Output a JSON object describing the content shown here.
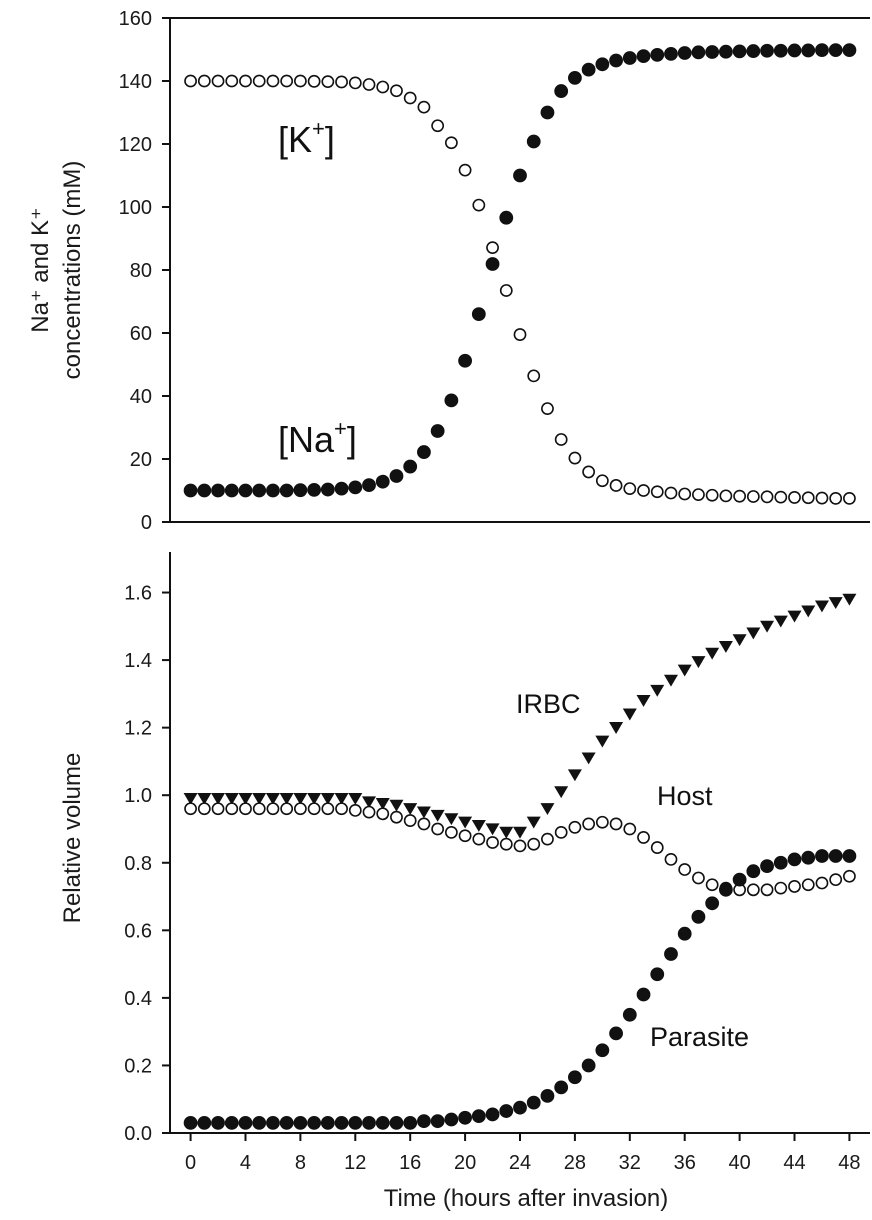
{
  "chart_data": [
    {
      "type": "scatter",
      "panel": "top",
      "ylabel_line1": "Na⁺ and K⁺",
      "ylabel_line2": "concentrations (mM)",
      "ylim": [
        0,
        160
      ],
      "yticks": [
        "0",
        "20",
        "40",
        "60",
        "80",
        "100",
        "120",
        "140",
        "160"
      ],
      "xlim": [
        -1.5,
        49.5
      ],
      "x": [
        0,
        1,
        2,
        3,
        4,
        5,
        6,
        7,
        8,
        9,
        10,
        11,
        12,
        13,
        14,
        15,
        16,
        17,
        18,
        19,
        20,
        21,
        22,
        23,
        24,
        25,
        26,
        27,
        28,
        29,
        30,
        31,
        32,
        33,
        34,
        35,
        36,
        37,
        38,
        39,
        40,
        41,
        42,
        43,
        44,
        45,
        46,
        47,
        48
      ],
      "series": [
        {
          "key": "k",
          "marker": "open-circle",
          "values": [
            140,
            140,
            140,
            140,
            140,
            140,
            140,
            140,
            140,
            139.9,
            139.8,
            139.7,
            139.4,
            138.9,
            138.1,
            136.9,
            134.6,
            131.7,
            125.8,
            120.4,
            111.7,
            100.6,
            87.1,
            73.5,
            59.5,
            46.4,
            36,
            26.2,
            20.3,
            15.9,
            13.1,
            11.6,
            10.6,
            10,
            9.6,
            9.2,
            8.9,
            8.7,
            8.5,
            8.3,
            8.2,
            8.1,
            8,
            7.9,
            7.8,
            7.7,
            7.6,
            7.5,
            7.5
          ]
        },
        {
          "key": "na",
          "marker": "filled-circle",
          "values": [
            10,
            10,
            10,
            10,
            10,
            10,
            10,
            10,
            10.1,
            10.2,
            10.3,
            10.6,
            11,
            11.7,
            12.8,
            14.6,
            17.6,
            22.2,
            28.9,
            38.6,
            51.2,
            66,
            81.9,
            96.6,
            110,
            120.8,
            130,
            136.8,
            141,
            143.6,
            145.3,
            146.5,
            147.3,
            147.9,
            148.3,
            148.6,
            148.9,
            149.1,
            149.2,
            149.3,
            149.4,
            149.5,
            149.6,
            149.6,
            149.7,
            149.7,
            149.8,
            149.8,
            149.8
          ]
        }
      ],
      "annotations": [
        {
          "key": "k",
          "base": "[K",
          "sup": "+",
          "close": "]"
        },
        {
          "key": "na",
          "base": "[Na",
          "sup": "+",
          "close": "]"
        }
      ]
    },
    {
      "type": "scatter",
      "panel": "bottom",
      "xlabel": "Time (hours after invasion)",
      "ylabel": "Relative volume",
      "ylim": [
        0,
        1.72
      ],
      "yticks": [
        "0.0",
        "0.2",
        "0.4",
        "0.6",
        "0.8",
        "1.0",
        "1.2",
        "1.4",
        "1.6"
      ],
      "xlim": [
        -1.5,
        49.5
      ],
      "xticks": [
        "0",
        "4",
        "8",
        "12",
        "16",
        "20",
        "24",
        "28",
        "32",
        "36",
        "40",
        "44",
        "48"
      ],
      "x": [
        0,
        1,
        2,
        3,
        4,
        5,
        6,
        7,
        8,
        9,
        10,
        11,
        12,
        13,
        14,
        15,
        16,
        17,
        18,
        19,
        20,
        21,
        22,
        23,
        24,
        25,
        26,
        27,
        28,
        29,
        30,
        31,
        32,
        33,
        34,
        35,
        36,
        37,
        38,
        39,
        40,
        41,
        42,
        43,
        44,
        45,
        46,
        47,
        48
      ],
      "series": [
        {
          "name": "IRBC",
          "marker": "filled-triangle-down",
          "values": [
            0.99,
            0.99,
            0.99,
            0.99,
            0.99,
            0.99,
            0.99,
            0.99,
            0.99,
            0.99,
            0.99,
            0.99,
            0.99,
            0.98,
            0.975,
            0.97,
            0.96,
            0.95,
            0.94,
            0.93,
            0.92,
            0.91,
            0.9,
            0.89,
            0.89,
            0.92,
            0.96,
            1.01,
            1.06,
            1.11,
            1.16,
            1.2,
            1.24,
            1.28,
            1.31,
            1.34,
            1.37,
            1.395,
            1.42,
            1.44,
            1.46,
            1.48,
            1.5,
            1.515,
            1.53,
            1.545,
            1.56,
            1.57,
            1.58
          ]
        },
        {
          "name": "Host",
          "marker": "open-circle",
          "values": [
            0.96,
            0.96,
            0.96,
            0.96,
            0.96,
            0.96,
            0.96,
            0.96,
            0.96,
            0.96,
            0.96,
            0.96,
            0.955,
            0.95,
            0.945,
            0.935,
            0.925,
            0.915,
            0.9,
            0.89,
            0.88,
            0.87,
            0.86,
            0.855,
            0.85,
            0.855,
            0.87,
            0.89,
            0.905,
            0.915,
            0.92,
            0.915,
            0.9,
            0.875,
            0.845,
            0.81,
            0.78,
            0.755,
            0.735,
            0.725,
            0.72,
            0.72,
            0.72,
            0.725,
            0.73,
            0.735,
            0.74,
            0.75,
            0.76
          ]
        },
        {
          "name": "Parasite",
          "marker": "filled-circle",
          "values": [
            0.03,
            0.03,
            0.03,
            0.03,
            0.03,
            0.03,
            0.03,
            0.03,
            0.03,
            0.03,
            0.03,
            0.03,
            0.03,
            0.03,
            0.03,
            0.03,
            0.03,
            0.035,
            0.035,
            0.04,
            0.045,
            0.05,
            0.055,
            0.065,
            0.075,
            0.09,
            0.11,
            0.135,
            0.165,
            0.2,
            0.245,
            0.295,
            0.35,
            0.41,
            0.47,
            0.53,
            0.59,
            0.64,
            0.68,
            0.72,
            0.75,
            0.775,
            0.79,
            0.8,
            0.81,
            0.815,
            0.82,
            0.82,
            0.82
          ]
        }
      ]
    }
  ]
}
